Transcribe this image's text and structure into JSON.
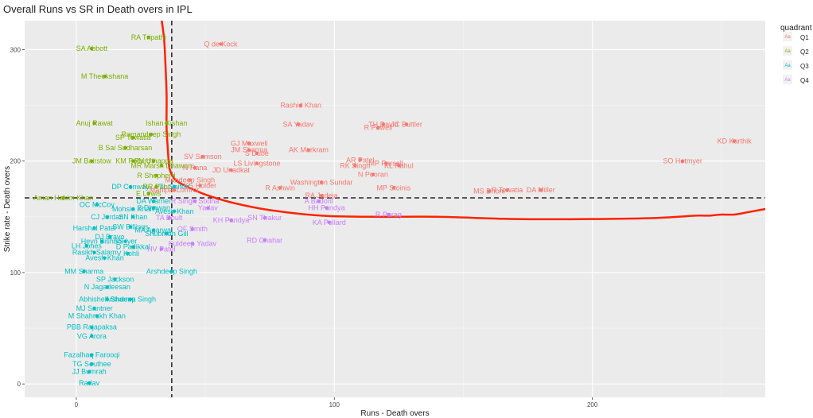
{
  "chart_data": {
    "type": "scatter",
    "title": "Overall Runs vs SR in Death overs in IPL",
    "xlabel": "Runs - Death overs",
    "ylabel": "Strike rate - Death overs",
    "xlim": [
      -20,
      267
    ],
    "ylim": [
      -12,
      326
    ],
    "x_ticks": [
      0,
      100,
      200
    ],
    "y_ticks": [
      0,
      100,
      200,
      300
    ],
    "grid": true,
    "background": "#ebebeb",
    "vline_x": 37,
    "hline_y": 167,
    "legend": {
      "title": "quadrant",
      "position": "right",
      "key_glyph": "Aa",
      "entries": [
        {
          "name": "Q1",
          "color": "#f8766d"
        },
        {
          "name": "Q2",
          "color": "#7cae00"
        },
        {
          "name": "Q3",
          "color": "#00bfc4"
        },
        {
          "name": "Q4",
          "color": "#c77cff"
        }
      ]
    },
    "colors": {
      "Q1": "#f8766d",
      "Q2": "#7cae00",
      "Q3": "#00bfc4",
      "Q4": "#c77cff",
      "smooth": "#ff2200"
    },
    "smooth_line": {
      "x": [
        33,
        34,
        34.5,
        35,
        35,
        35.5,
        36,
        37,
        39,
        43,
        50,
        60,
        75,
        95,
        115,
        140,
        170,
        200,
        225,
        240,
        245,
        250,
        255,
        260,
        267
      ],
      "y": [
        328,
        310,
        290,
        260,
        230,
        210,
        195,
        188,
        182,
        177,
        170,
        163,
        156,
        151,
        150,
        150,
        148,
        148,
        149,
        151,
        151,
        152,
        152,
        154,
        157
      ]
    },
    "points": [
      {
        "label": "RA Tripathi",
        "x": 28,
        "y": 311,
        "q": "Q2"
      },
      {
        "label": "Q de Kock",
        "x": 56,
        "y": 305,
        "q": "Q1"
      },
      {
        "label": "SA Abbott",
        "x": 6,
        "y": 301,
        "q": "Q2"
      },
      {
        "label": "M Theekshana",
        "x": 11,
        "y": 276,
        "q": "Q2"
      },
      {
        "label": "Rashid Khan",
        "x": 87,
        "y": 250,
        "q": "Q1"
      },
      {
        "label": "Anuj Rawat",
        "x": 7,
        "y": 234,
        "q": "Q2"
      },
      {
        "label": "Ishan Kishan",
        "x": 35,
        "y": 234,
        "q": "Q2"
      },
      {
        "label": "SA Yadav",
        "x": 86,
        "y": 233,
        "q": "Q1"
      },
      {
        "label": "TH David",
        "x": 119,
        "y": 233,
        "q": "Q1"
      },
      {
        "label": "JC Buttler",
        "x": 128,
        "y": 233,
        "q": "Q1"
      },
      {
        "label": "R Powell",
        "x": 117,
        "y": 230,
        "q": "Q1"
      },
      {
        "label": "Ramandeep Singh",
        "x": 29,
        "y": 224,
        "q": "Q2"
      },
      {
        "label": "SP Tewatia",
        "x": 22,
        "y": 221,
        "q": "Q2"
      },
      {
        "label": "KD Karthik",
        "x": 255,
        "y": 218,
        "q": "Q1"
      },
      {
        "label": "GJ Maxwell",
        "x": 67,
        "y": 216,
        "q": "Q1"
      },
      {
        "label": "B Sai Sudharsan",
        "x": 19,
        "y": 212,
        "q": "Q2"
      },
      {
        "label": "JM Sharma",
        "x": 67,
        "y": 210,
        "q": "Q1"
      },
      {
        "label": "AK Markram",
        "x": 90,
        "y": 210,
        "q": "Q1"
      },
      {
        "label": "S Dube",
        "x": 70,
        "y": 207,
        "q": "Q1"
      },
      {
        "label": "SV Samson",
        "x": 49,
        "y": 204,
        "q": "Q1"
      },
      {
        "label": "JM Bairstow",
        "x": 6,
        "y": 200,
        "q": "Q2"
      },
      {
        "label": "KM Pollard",
        "x": 22,
        "y": 200,
        "q": "Q2"
      },
      {
        "label": "RV Uthappa",
        "x": 30,
        "y": 200,
        "q": "Q2"
      },
      {
        "label": "SO Hetmyer",
        "x": 235,
        "y": 200,
        "q": "Q1"
      },
      {
        "label": "AR Patel",
        "x": 110,
        "y": 201,
        "q": "Q1"
      },
      {
        "label": "LS Livingstone",
        "x": 70,
        "y": 198,
        "q": "Q1"
      },
      {
        "label": "MP Parsell",
        "x": 120,
        "y": 198,
        "q": "Q1"
      },
      {
        "label": "MR Marsh Dhawan",
        "x": 33,
        "y": 196,
        "q": "Q2"
      },
      {
        "label": "RK Singh",
        "x": 108,
        "y": 196,
        "q": "Q1"
      },
      {
        "label": "KL Rahul",
        "x": 125,
        "y": 196,
        "q": "Q1"
      },
      {
        "label": "N Rana",
        "x": 46,
        "y": 194,
        "q": "Q1"
      },
      {
        "label": "JD Unadkat",
        "x": 60,
        "y": 192,
        "q": "Q1"
      },
      {
        "label": "R Shepherd",
        "x": 31,
        "y": 187,
        "q": "Q2"
      },
      {
        "label": "N Pooran",
        "x": 115,
        "y": 188,
        "q": "Q1"
      },
      {
        "label": "Mandeep Singh",
        "x": 44,
        "y": 183,
        "q": "Q1"
      },
      {
        "label": "Washington Sundar",
        "x": 95,
        "y": 181,
        "q": "Q1"
      },
      {
        "label": "DP Conway",
        "x": 21,
        "y": 177,
        "q": "Q3"
      },
      {
        "label": "RR Pant",
        "x": 31,
        "y": 177,
        "q": "Q2"
      },
      {
        "label": "TL Seifert",
        "x": 38,
        "y": 177,
        "q": "Q3"
      },
      {
        "label": "KS Holder",
        "x": 48,
        "y": 178,
        "q": "Q1"
      },
      {
        "label": "R Ashwin",
        "x": 79,
        "y": 176,
        "q": "Q1"
      },
      {
        "label": "MP Stoinis",
        "x": 123,
        "y": 176,
        "q": "Q1"
      },
      {
        "label": "MS Dhoni",
        "x": 160,
        "y": 173,
        "q": "Q1"
      },
      {
        "label": "R Tewatia",
        "x": 167,
        "y": 174,
        "q": "Q1"
      },
      {
        "label": "DA Miller",
        "x": 180,
        "y": 174,
        "q": "Q1"
      },
      {
        "label": "Mahipal Lomror",
        "x": 38,
        "y": 174,
        "q": "Q1"
      },
      {
        "label": "E Lewis",
        "x": 28,
        "y": 171,
        "q": "Q2"
      },
      {
        "label": "RA Jadeja",
        "x": 95,
        "y": 169,
        "q": "Q1"
      },
      {
        "label": "Aman Hakim Khan",
        "x": -5,
        "y": 167,
        "q": "Q2"
      },
      {
        "label": "A Badoni",
        "x": 94,
        "y": 164,
        "q": "Q4"
      },
      {
        "label": "DA Warner",
        "x": 30,
        "y": 164,
        "q": "Q3"
      },
      {
        "label": "OC McCoy",
        "x": 8,
        "y": 161,
        "q": "Q3"
      },
      {
        "label": "R Singh Sodha",
        "x": 46,
        "y": 164,
        "q": "Q4"
      },
      {
        "label": "HH Pandya",
        "x": 97,
        "y": 158,
        "q": "Q4"
      },
      {
        "label": "Mohsin Khan",
        "x": 22,
        "y": 157,
        "q": "Q3"
      },
      {
        "label": "S Dhawan",
        "x": 30,
        "y": 158,
        "q": "Q3"
      },
      {
        "label": "Yadav",
        "x": 51,
        "y": 158,
        "q": "Q4"
      },
      {
        "label": "Avesh Khan",
        "x": 38,
        "y": 155,
        "q": "Q3"
      },
      {
        "label": "R Parag",
        "x": 121,
        "y": 152,
        "q": "Q4"
      },
      {
        "label": "CJ Jordan",
        "x": 12,
        "y": 150,
        "q": "Q3"
      },
      {
        "label": "SN Khan",
        "x": 22,
        "y": 150,
        "q": "Q3"
      },
      {
        "label": "TA Boult",
        "x": 36,
        "y": 149,
        "q": "Q4"
      },
      {
        "label": "KH Pandya",
        "x": 60,
        "y": 147,
        "q": "Q4"
      },
      {
        "label": "SN Thakur",
        "x": 73,
        "y": 149,
        "q": "Q4"
      },
      {
        "label": "KA Pollard",
        "x": 98,
        "y": 145,
        "q": "Q4"
      },
      {
        "label": "SW Billings",
        "x": 21,
        "y": 141,
        "q": "Q3"
      },
      {
        "label": "Harshal Patel",
        "x": 7,
        "y": 140,
        "q": "Q3"
      },
      {
        "label": "MA Agarwal",
        "x": 30,
        "y": 138,
        "q": "Q3"
      },
      {
        "label": "OF Smith",
        "x": 45,
        "y": 139,
        "q": "Q4"
      },
      {
        "label": "Shubman Gill",
        "x": 35,
        "y": 135,
        "q": "Q3"
      },
      {
        "label": "DJ Bravo",
        "x": 13,
        "y": 132,
        "q": "Q3"
      },
      {
        "label": "RD Chahar",
        "x": 73,
        "y": 129,
        "q": "Q4"
      },
      {
        "label": "Heyn Bishnoi",
        "x": 10,
        "y": 128,
        "q": "Q3"
      },
      {
        "label": "SS Iyer",
        "x": 19,
        "y": 128,
        "q": "Q3"
      },
      {
        "label": "Kuldeep Yadav",
        "x": 45,
        "y": 126,
        "q": "Q4"
      },
      {
        "label": "LH Jones",
        "x": 4,
        "y": 124,
        "q": "Q3"
      },
      {
        "label": "D Padikkal",
        "x": 22,
        "y": 123,
        "q": "Q3"
      },
      {
        "label": "HV Patel",
        "x": 33,
        "y": 121,
        "q": "Q4"
      },
      {
        "label": "Rasikh Salam",
        "x": 7,
        "y": 118,
        "q": "Q3"
      },
      {
        "label": "V Kohli",
        "x": 20,
        "y": 117,
        "q": "Q3"
      },
      {
        "label": "Avesh Khan",
        "x": 11,
        "y": 113,
        "q": "Q3"
      },
      {
        "label": "MM Sharma",
        "x": 3,
        "y": 101,
        "q": "Q3"
      },
      {
        "label": "Arshdeep Singh",
        "x": 37,
        "y": 101,
        "q": "Q3"
      },
      {
        "label": "SP Jackson",
        "x": 15,
        "y": 94,
        "q": "Q3"
      },
      {
        "label": "N Jagadeesan",
        "x": 12,
        "y": 87,
        "q": "Q3"
      },
      {
        "label": "Abhishek Sharma",
        "x": 12,
        "y": 76,
        "q": "Q3"
      },
      {
        "label": "Arshdeep Singh",
        "x": 21,
        "y": 76,
        "q": "Q3"
      },
      {
        "label": "MJ Santner",
        "x": 7,
        "y": 68,
        "q": "Q3"
      },
      {
        "label": "M Shahrukh Khan",
        "x": 8,
        "y": 61,
        "q": "Q3"
      },
      {
        "label": "PBB Rajapaksa",
        "x": 6,
        "y": 51,
        "q": "Q3"
      },
      {
        "label": "VG Arora",
        "x": 6,
        "y": 43,
        "q": "Q3"
      },
      {
        "label": "Fazalhaq Farooqi",
        "x": 6,
        "y": 26,
        "q": "Q3"
      },
      {
        "label": "TG Southee",
        "x": 6,
        "y": 18,
        "q": "Q3"
      },
      {
        "label": "JJ Bumrah",
        "x": 5,
        "y": 11,
        "q": "Q3"
      },
      {
        "label": "Radav",
        "x": 5,
        "y": 1,
        "q": "Q3"
      }
    ]
  }
}
